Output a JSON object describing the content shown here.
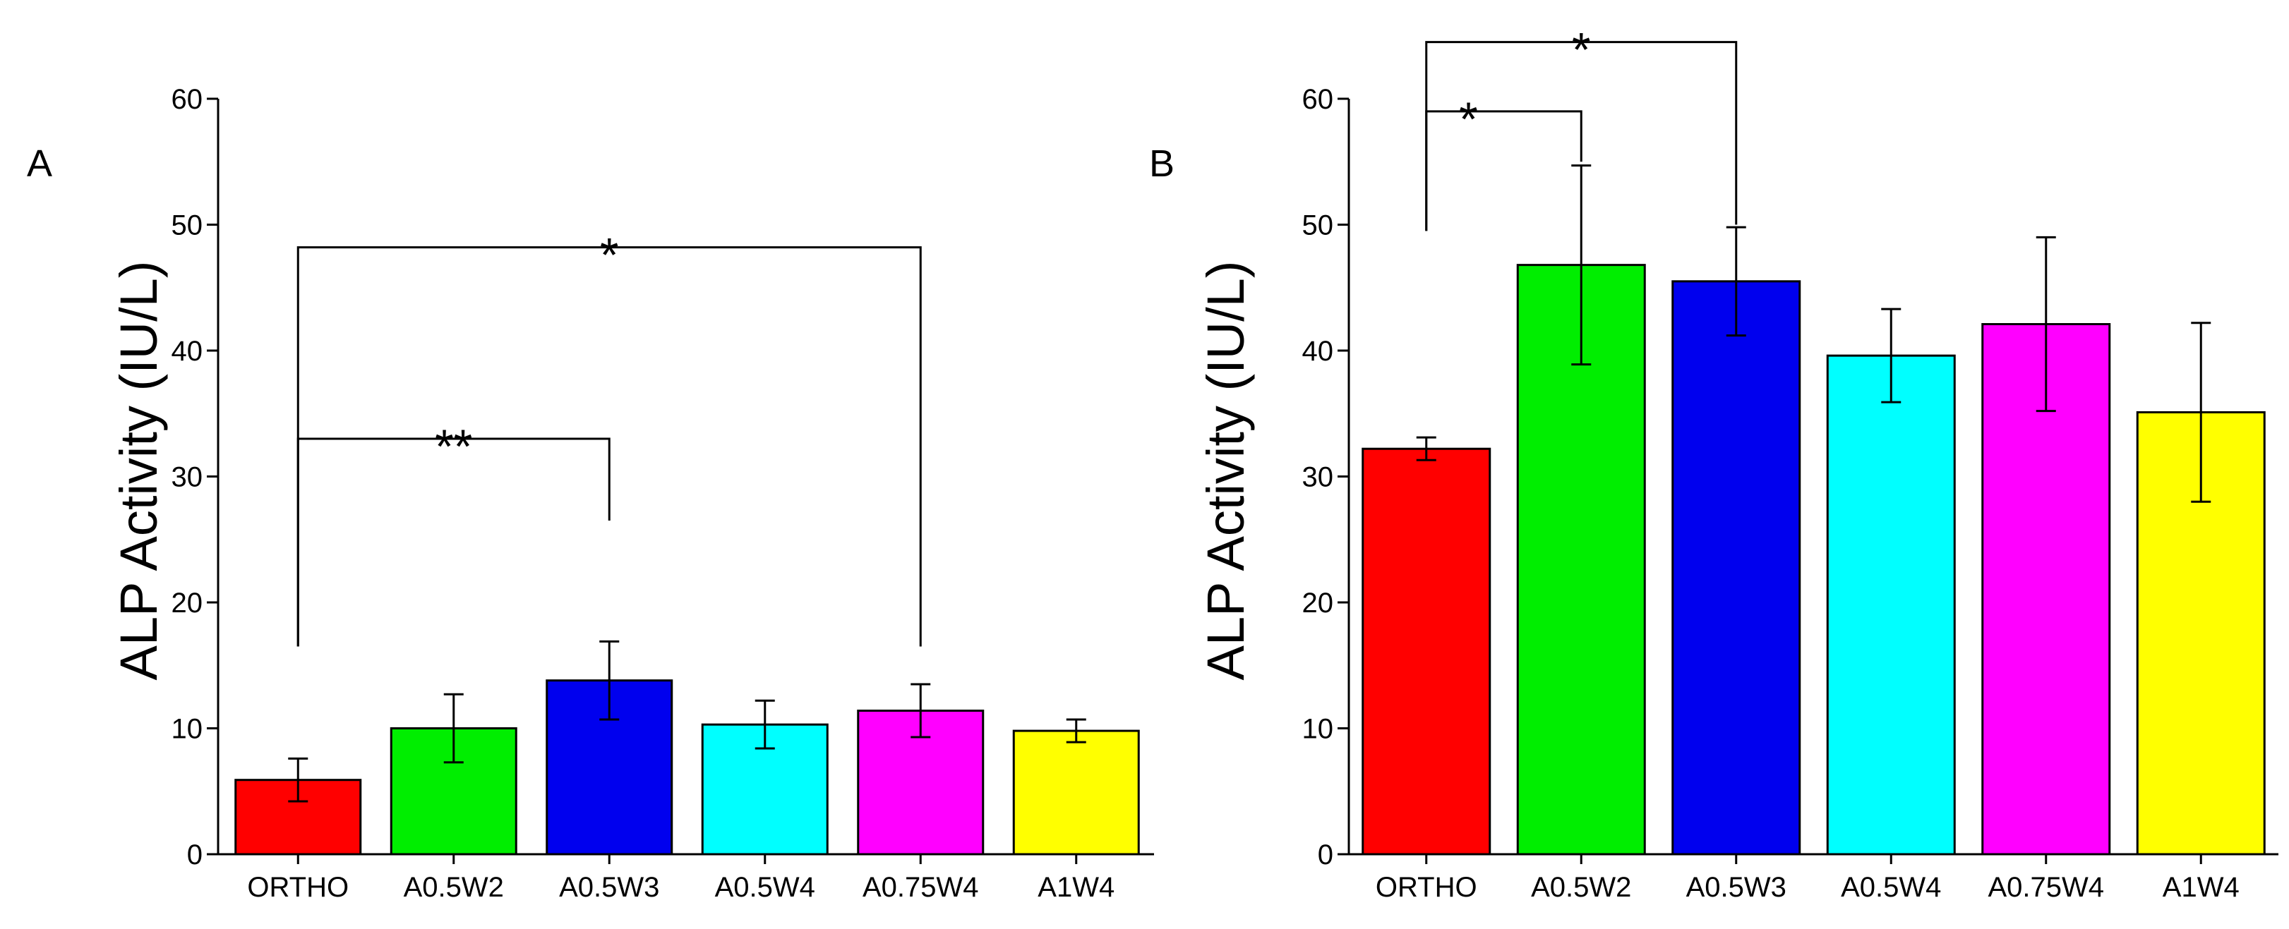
{
  "chart_data": [
    {
      "type": "bar",
      "panel_label": "A",
      "ylabel": "ALP Activity (IU/L)",
      "xlabel": "",
      "ylim": [
        0,
        60
      ],
      "yticks": [
        0,
        10,
        20,
        30,
        40,
        50,
        60
      ],
      "categories": [
        "ORTHO",
        "A0.5W2",
        "A0.5W3",
        "A0.5W4",
        "A0.75W4",
        "A1W4"
      ],
      "values": [
        5.9,
        10.0,
        13.8,
        10.3,
        11.4,
        9.8
      ],
      "errors": [
        1.7,
        2.7,
        3.1,
        1.9,
        2.1,
        0.9
      ],
      "colors": [
        "#ff0000",
        "#00ee00",
        "#0000ee",
        "#00ffff",
        "#ff00ff",
        "#ffff00"
      ],
      "annotations": [
        {
          "label": "*",
          "from": "ORTHO",
          "to": "A0.75W4",
          "y_top": 48.2,
          "y_left": 16.5,
          "y_right": 16.5
        },
        {
          "label": "**",
          "from": "ORTHO",
          "to": "A0.5W3",
          "y_top": 33.0,
          "y_left": 16.5,
          "y_right": 26.5
        }
      ]
    },
    {
      "type": "bar",
      "panel_label": "B",
      "ylabel": "ALP Activity (IU/L)",
      "xlabel": "",
      "ylim": [
        0,
        60
      ],
      "yticks": [
        0,
        10,
        20,
        30,
        40,
        50,
        60
      ],
      "categories": [
        "ORTHO",
        "A0.5W2",
        "A0.5W3",
        "A0.5W4",
        "A0.75W4",
        "A1W4"
      ],
      "values": [
        32.2,
        46.8,
        45.5,
        39.6,
        42.1,
        35.1
      ],
      "errors": [
        0.9,
        7.9,
        4.3,
        3.7,
        6.9,
        7.1
      ],
      "colors": [
        "#ff0000",
        "#00ee00",
        "#0000ee",
        "#00ffff",
        "#ff00ff",
        "#ffff00"
      ],
      "annotations": [
        {
          "label": "*",
          "from": "ORTHO",
          "to": "A0.5W2",
          "y_top": 59.0,
          "y_left": 49.5,
          "y_right": 55.0
        },
        {
          "label": "*",
          "from": "ORTHO",
          "to": "A0.5W3",
          "y_top": 64.5,
          "y_left": 49.5,
          "y_right": 50.0
        }
      ]
    }
  ]
}
